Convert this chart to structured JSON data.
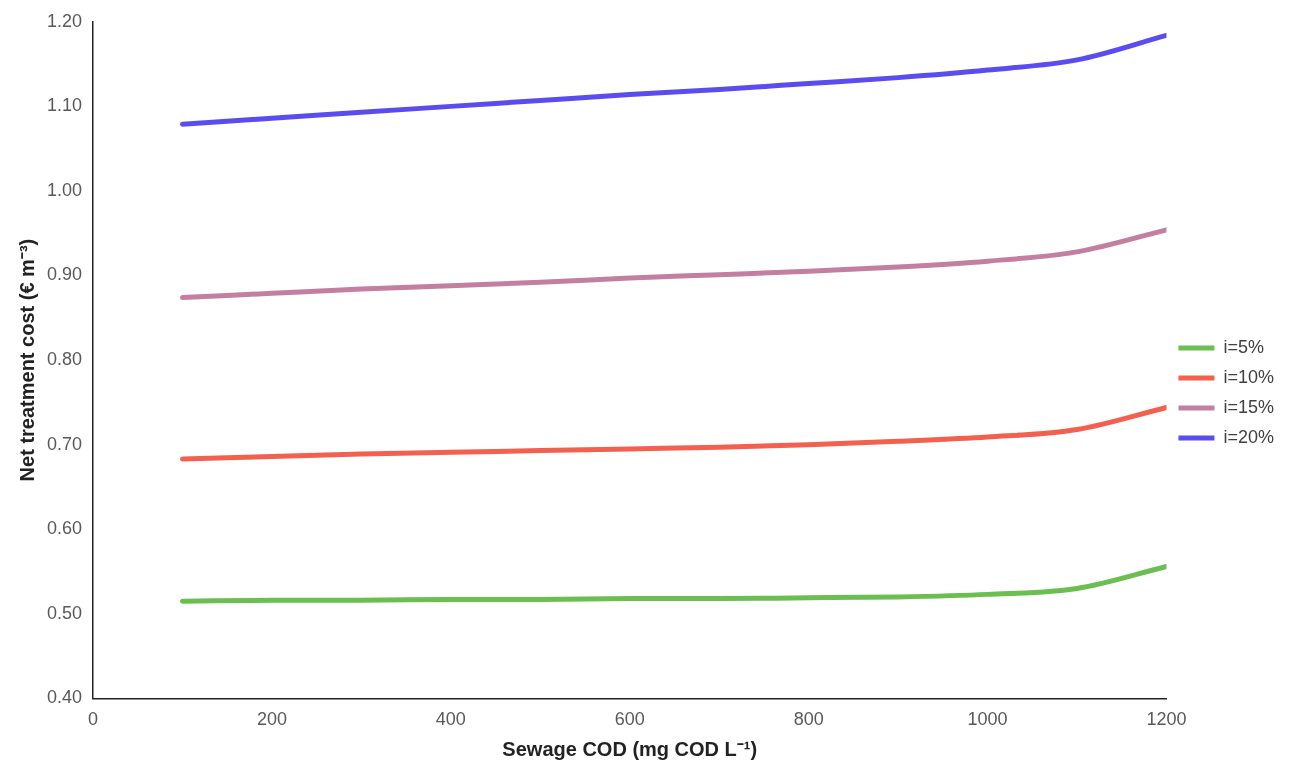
{
  "chart_data": {
    "type": "line",
    "xlabel": "Sewage COD (mg COD L⁻¹)",
    "ylabel": "Net treatment cost (€ m⁻³)",
    "x": [
      100,
      200,
      300,
      400,
      500,
      600,
      700,
      800,
      900,
      1000,
      1100,
      1200
    ],
    "series": [
      {
        "name": "i=5%",
        "color": "#6abf50",
        "values": [
          0.515,
          0.516,
          0.516,
          0.517,
          0.517,
          0.518,
          0.518,
          0.519,
          0.52,
          0.523,
          0.53,
          0.556
        ]
      },
      {
        "name": "i=10%",
        "color": "#f4604f",
        "values": [
          0.683,
          0.686,
          0.689,
          0.691,
          0.693,
          0.695,
          0.697,
          0.7,
          0.704,
          0.709,
          0.718,
          0.744
        ]
      },
      {
        "name": "i=15%",
        "color": "#c47fa0",
        "values": [
          0.874,
          0.879,
          0.884,
          0.888,
          0.892,
          0.897,
          0.901,
          0.905,
          0.91,
          0.917,
          0.928,
          0.954
        ]
      },
      {
        "name": "i=20%",
        "color": "#5b4cf0",
        "values": [
          1.079,
          1.086,
          1.093,
          1.1,
          1.107,
          1.114,
          1.12,
          1.127,
          1.134,
          1.143,
          1.155,
          1.184
        ]
      }
    ],
    "xlim": [
      0,
      1200
    ],
    "xticks": [
      0,
      200,
      400,
      600,
      800,
      1000,
      1200
    ],
    "ylim": [
      0.4,
      1.2
    ],
    "yticks": [
      {
        "value": 0.4,
        "label": "0.40"
      },
      {
        "value": 0.5,
        "label": "0.50"
      },
      {
        "value": 0.6,
        "label": "0.60"
      },
      {
        "value": 0.7,
        "label": "0.70"
      },
      {
        "value": 0.8,
        "label": "0.80"
      },
      {
        "value": 0.9,
        "label": "0.90"
      },
      {
        "value": 1.0,
        "label": "1.00"
      },
      {
        "value": 1.1,
        "label": "1.10"
      },
      {
        "value": 1.2,
        "label": "1.20"
      }
    ],
    "grid": false,
    "legend": "right",
    "marker": "none",
    "line_style": "solid"
  }
}
